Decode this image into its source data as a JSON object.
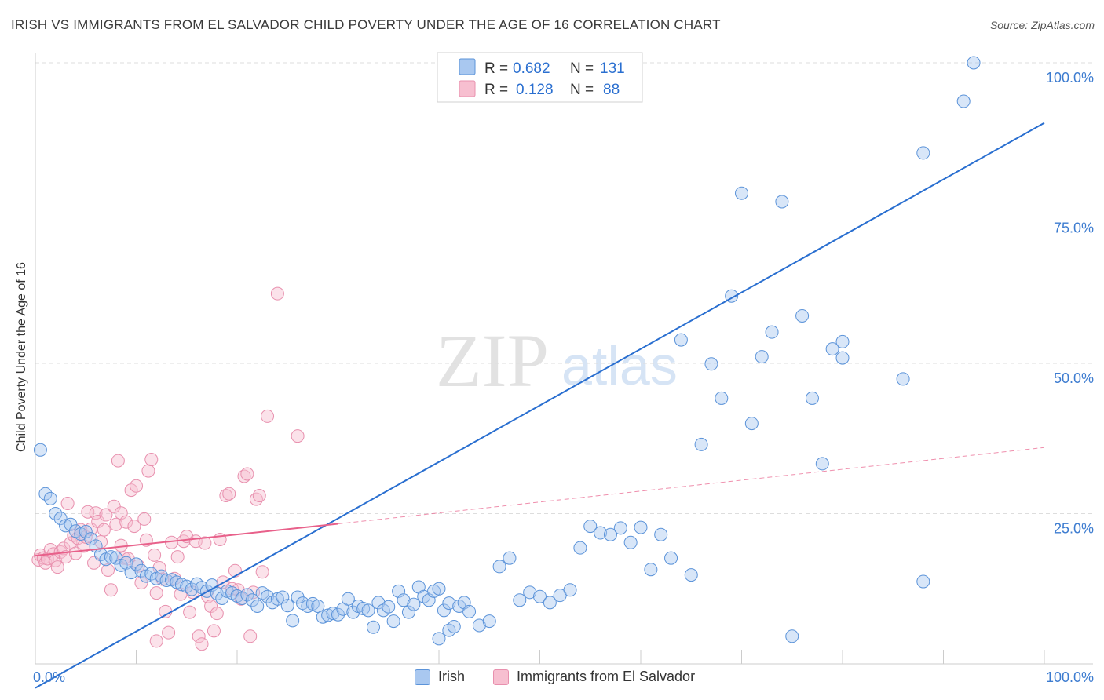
{
  "title": "IRISH VS IMMIGRANTS FROM EL SALVADOR CHILD POVERTY UNDER THE AGE OF 16 CORRELATION CHART",
  "source": "Source: ZipAtlas.com",
  "watermark": {
    "zip": "ZIP",
    "atlas": "atlas"
  },
  "colors": {
    "irish_fill": "#a9c8f0",
    "irish_stroke": "#5b93d9",
    "irish_line": "#2a6fd0",
    "salv_fill": "#f7bfd0",
    "salv_stroke": "#e890ae",
    "salv_line": "#e8608a",
    "axis_text": "#3d7cd0",
    "grid": "#dddddd"
  },
  "legend_top": {
    "rows": [
      {
        "r_label": "R =",
        "r_value": "0.682",
        "n_label": "N =",
        "n_value": "131"
      },
      {
        "r_label": "R =",
        "r_value": "0.128",
        "n_label": "N =",
        "n_value": "88"
      }
    ]
  },
  "legend_bottom": {
    "irish": "Irish",
    "salv": "Immigrants from El Salvador"
  },
  "chart_data": {
    "type": "scatter",
    "title": "IRISH VS IMMIGRANTS FROM EL SALVADOR CHILD POVERTY UNDER THE AGE OF 16 CORRELATION CHART",
    "xlabel": "",
    "ylabel": "Child Poverty Under the Age of 16",
    "x_tick_labels": [
      "0.0%",
      "100.0%"
    ],
    "y_tick_labels": [
      "25.0%",
      "50.0%",
      "75.0%",
      "100.0%"
    ],
    "xlim": [
      0,
      100
    ],
    "ylim": [
      0,
      100
    ],
    "grid": true,
    "legend_position": "top-center",
    "series": [
      {
        "name": "Irish",
        "r": 0.682,
        "n": 131,
        "trend": {
          "x": [
            0,
            100
          ],
          "y": [
            -4,
            90
          ]
        },
        "points": [
          [
            0.5,
            35.6
          ],
          [
            1,
            28.3
          ],
          [
            1.5,
            27.5
          ],
          [
            2,
            25
          ],
          [
            2.5,
            24.2
          ],
          [
            3,
            23
          ],
          [
            3.5,
            23.2
          ],
          [
            4,
            22.1
          ],
          [
            4.5,
            21.6
          ],
          [
            5,
            22
          ],
          [
            5.5,
            20.8
          ],
          [
            6,
            19.6
          ],
          [
            6.5,
            18.2
          ],
          [
            7,
            17.4
          ],
          [
            7.5,
            17.8
          ],
          [
            8,
            17.6
          ],
          [
            8.5,
            16.4
          ],
          [
            9,
            16.8
          ],
          [
            9.5,
            15.2
          ],
          [
            10,
            16.6
          ],
          [
            10.5,
            15.5
          ],
          [
            11,
            14.6
          ],
          [
            11.5,
            15
          ],
          [
            12,
            14.2
          ],
          [
            12.5,
            14.6
          ],
          [
            13,
            13.9
          ],
          [
            13.5,
            14
          ],
          [
            14,
            13.6
          ],
          [
            14.5,
            13.2
          ],
          [
            15,
            12.9
          ],
          [
            15.5,
            12.4
          ],
          [
            16,
            13.3
          ],
          [
            16.5,
            12.7
          ],
          [
            17,
            12.1
          ],
          [
            17.5,
            13.1
          ],
          [
            18,
            11.7
          ],
          [
            18.5,
            10.9
          ],
          [
            19,
            12.1
          ],
          [
            19.5,
            11.8
          ],
          [
            20,
            11.3
          ],
          [
            20.5,
            10.9
          ],
          [
            21,
            11.5
          ],
          [
            21.5,
            10.6
          ],
          [
            22,
            9.6
          ],
          [
            22.5,
            11.8
          ],
          [
            23,
            11.2
          ],
          [
            23.5,
            10.2
          ],
          [
            24,
            10.8
          ],
          [
            24.5,
            11.1
          ],
          [
            25,
            9.7
          ],
          [
            25.5,
            7.2
          ],
          [
            26,
            11.1
          ],
          [
            26.5,
            10.1
          ],
          [
            27,
            9.6
          ],
          [
            27.5,
            10
          ],
          [
            28,
            9.6
          ],
          [
            28.5,
            7.8
          ],
          [
            29,
            8.1
          ],
          [
            29.5,
            8.4
          ],
          [
            30,
            8.2
          ],
          [
            30.5,
            9.1
          ],
          [
            31,
            10.8
          ],
          [
            31.5,
            8.6
          ],
          [
            32,
            9.6
          ],
          [
            32.5,
            9.2
          ],
          [
            33,
            8.9
          ],
          [
            33.5,
            6.1
          ],
          [
            34,
            10.2
          ],
          [
            34.5,
            8.9
          ],
          [
            35,
            9.5
          ],
          [
            35.5,
            7.1
          ],
          [
            36,
            12.1
          ],
          [
            36.5,
            10.6
          ],
          [
            37,
            8.6
          ],
          [
            37.5,
            9.9
          ],
          [
            38,
            12.8
          ],
          [
            38.5,
            11.2
          ],
          [
            39,
            10.6
          ],
          [
            39.5,
            12.1
          ],
          [
            40,
            12.5
          ],
          [
            40.5,
            8.9
          ],
          [
            41,
            10.1
          ],
          [
            40,
            4.2
          ],
          [
            41,
            5.6
          ],
          [
            41.5,
            6.2
          ],
          [
            42,
            9.6
          ],
          [
            42.5,
            10.2
          ],
          [
            43,
            8.7
          ],
          [
            44,
            6.4
          ],
          [
            45,
            7.1
          ],
          [
            46,
            16.2
          ],
          [
            47,
            17.6
          ],
          [
            48,
            10.6
          ],
          [
            49,
            11.9
          ],
          [
            50,
            11.2
          ],
          [
            51,
            10.2
          ],
          [
            52,
            11.4
          ],
          [
            53,
            12.3
          ],
          [
            54,
            19.3
          ],
          [
            55,
            22.9
          ],
          [
            56,
            21.8
          ],
          [
            57,
            21.5
          ],
          [
            58,
            22.6
          ],
          [
            59,
            20.2
          ],
          [
            60,
            22.7
          ],
          [
            61,
            15.7
          ],
          [
            62,
            21.5
          ],
          [
            63,
            17.6
          ],
          [
            64,
            53.9
          ],
          [
            65,
            14.8
          ],
          [
            66,
            36.5
          ],
          [
            67,
            49.9
          ],
          [
            68,
            44.2
          ],
          [
            69,
            61.2
          ],
          [
            70,
            78.3
          ],
          [
            71,
            40
          ],
          [
            72,
            51.1
          ],
          [
            73,
            55.2
          ],
          [
            74,
            76.9
          ],
          [
            75,
            4.6
          ],
          [
            76,
            57.9
          ],
          [
            77,
            44.2
          ],
          [
            78,
            33.3
          ],
          [
            79,
            52.4
          ],
          [
            80,
            53.6
          ],
          [
            80,
            50.9
          ],
          [
            86,
            47.4
          ],
          [
            88,
            13.7
          ],
          [
            88,
            85
          ],
          [
            92,
            93.6
          ],
          [
            93,
            100
          ]
        ]
      },
      {
        "name": "Immigrants from El Salvador",
        "r": 0.128,
        "n": 88,
        "trend_solid": {
          "x": [
            0,
            30
          ],
          "y": [
            18,
            23.3
          ]
        },
        "trend_dashed": {
          "x": [
            30,
            100
          ],
          "y": [
            23.3,
            36
          ]
        },
        "points": [
          [
            0.3,
            17.3
          ],
          [
            0.5,
            18.1
          ],
          [
            0.8,
            17.6
          ],
          [
            1,
            16.8
          ],
          [
            1.2,
            17.5
          ],
          [
            1.5,
            19
          ],
          [
            1.8,
            18.3
          ],
          [
            2,
            17.2
          ],
          [
            2.2,
            16.1
          ],
          [
            2.5,
            18.6
          ],
          [
            2.8,
            19.2
          ],
          [
            3,
            17.8
          ],
          [
            3.2,
            26.7
          ],
          [
            3.5,
            20.1
          ],
          [
            3.8,
            21.4
          ],
          [
            4,
            18.4
          ],
          [
            4.2,
            20.9
          ],
          [
            4.5,
            22.3
          ],
          [
            4.8,
            19.6
          ],
          [
            5,
            21.1
          ],
          [
            5.2,
            25.3
          ],
          [
            5.5,
            22.4
          ],
          [
            5.8,
            16.8
          ],
          [
            6,
            25.1
          ],
          [
            6.2,
            23.7
          ],
          [
            6.5,
            20.3
          ],
          [
            6.8,
            22.3
          ],
          [
            7,
            24.8
          ],
          [
            7.2,
            15.6
          ],
          [
            7.5,
            12.3
          ],
          [
            7.8,
            26.2
          ],
          [
            8,
            23.2
          ],
          [
            8.2,
            33.8
          ],
          [
            8.5,
            25.1
          ],
          [
            8.8,
            17.6
          ],
          [
            9,
            23.6
          ],
          [
            9.2,
            17.5
          ],
          [
            9.5,
            28.9
          ],
          [
            9.8,
            22.9
          ],
          [
            10,
            29.6
          ],
          [
            10.2,
            16.3
          ],
          [
            10.5,
            13.5
          ],
          [
            10.8,
            24.1
          ],
          [
            11,
            20.6
          ],
          [
            11.2,
            32.1
          ],
          [
            11.5,
            34
          ],
          [
            11.8,
            18.1
          ],
          [
            12,
            11.8
          ],
          [
            12.3,
            16
          ],
          [
            12.6,
            14.1
          ],
          [
            12.9,
            8.7
          ],
          [
            13.2,
            5.2
          ],
          [
            13.5,
            20.2
          ],
          [
            13.8,
            14.2
          ],
          [
            14.1,
            17.8
          ],
          [
            14.4,
            11.6
          ],
          [
            14.7,
            20.4
          ],
          [
            15,
            21.2
          ],
          [
            15.3,
            8.6
          ],
          [
            15.6,
            11.9
          ],
          [
            15.9,
            20.4
          ],
          [
            16.2,
            4.6
          ],
          [
            16.5,
            3.3
          ],
          [
            16.8,
            20.1
          ],
          [
            17.1,
            11.2
          ],
          [
            17.4,
            9.6
          ],
          [
            17.7,
            5.5
          ],
          [
            18,
            8.4
          ],
          [
            18.3,
            20.7
          ],
          [
            18.6,
            13.6
          ],
          [
            18.9,
            28
          ],
          [
            19.2,
            28.3
          ],
          [
            19.5,
            12.5
          ],
          [
            19.8,
            15.5
          ],
          [
            20.1,
            12.3
          ],
          [
            20.4,
            10.8
          ],
          [
            20.7,
            31.2
          ],
          [
            21,
            31.6
          ],
          [
            21.3,
            4.6
          ],
          [
            21.6,
            11.9
          ],
          [
            21.9,
            27.4
          ],
          [
            22.2,
            28
          ],
          [
            22.5,
            15.3
          ],
          [
            23,
            41.2
          ],
          [
            24,
            61.6
          ],
          [
            26,
            37.9
          ],
          [
            12,
            3.8
          ],
          [
            8.5,
            19.7
          ]
        ]
      }
    ]
  }
}
